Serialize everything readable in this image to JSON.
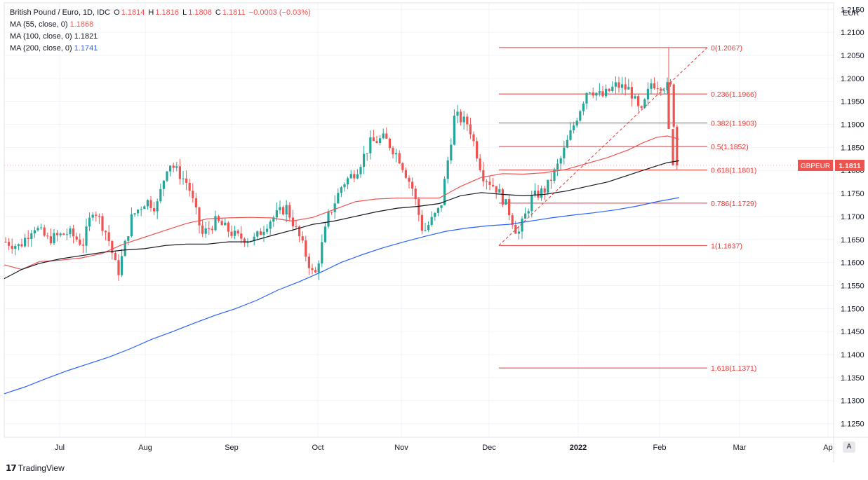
{
  "legend": {
    "title": "British Pound / Euro, 1D, IDC",
    "open_label": "O",
    "open": "1.1814",
    "high_label": "H",
    "high": "1.1816",
    "low_label": "L",
    "low": "1.1808",
    "close_label": "C",
    "close": "1.1811",
    "change": "−0.0003 (−0.03%)",
    "ma55_label": "MA (55, close, 0)",
    "ma55_value": "1.1868",
    "ma100_label": "MA (100, close, 0)",
    "ma100_value": "1.1821",
    "ma200_label": "MA (200, close, 0)",
    "ma200_value": "1.1741"
  },
  "currency": "EUR",
  "brand": "TradingView",
  "auto_label": "A",
  "chart_data": {
    "type": "candlestick",
    "symbol": "GBPEUR",
    "last_price": "1.1811",
    "ylim": [
      1.1225,
      1.2155
    ],
    "y_ticks": [
      "1.2150",
      "1.2100",
      "1.2050",
      "1.2000",
      "1.1950",
      "1.1900",
      "1.1850",
      "1.1800",
      "1.1750",
      "1.1700",
      "1.1650",
      "1.1600",
      "1.1550",
      "1.1500",
      "1.1450",
      "1.1400",
      "1.1350",
      "1.1300",
      "1.1250"
    ],
    "x_labels": [
      "Jul",
      "Aug",
      "Sep",
      "Oct",
      "Nov",
      "Dec",
      "2022",
      "Feb",
      "Mar",
      "Ap"
    ],
    "bull_color": "#26a69a",
    "bear_color": "#ef5350",
    "fib_color": "#e53935",
    "fibonacci": [
      {
        "label": "0(1.2067)",
        "value": 1.2067
      },
      {
        "label": "0.236(1.1966)",
        "value": 1.1966
      },
      {
        "label": "0.382(1.1903)",
        "value": 1.1903
      },
      {
        "label": "0.5(1.1852)",
        "value": 1.1852
      },
      {
        "label": "0.618(1.1801)",
        "value": 1.1801
      },
      {
        "label": "0.786(1.1729)",
        "value": 1.1729
      },
      {
        "label": "1(1.1637)",
        "value": 1.1637
      },
      {
        "label": "1.618(1.1371)",
        "value": 1.1371
      }
    ],
    "fib_trend_line": {
      "start_value": 1.1637,
      "end_value": 1.2067
    },
    "series": [
      {
        "name": "MA (55, close, 0)",
        "color": "#ef5350",
        "points": [
          [
            0,
            1.1595
          ],
          [
            25,
            1.1585
          ],
          [
            50,
            1.1602
          ],
          [
            80,
            1.1605
          ],
          [
            110,
            1.161
          ],
          [
            140,
            1.162
          ],
          [
            170,
            1.164
          ],
          [
            200,
            1.1655
          ],
          [
            230,
            1.167
          ],
          [
            260,
            1.1685
          ],
          [
            290,
            1.1695
          ],
          [
            320,
            1.1697
          ],
          [
            350,
            1.1698
          ],
          [
            380,
            1.1697
          ],
          [
            410,
            1.169
          ],
          [
            440,
            1.1698
          ],
          [
            470,
            1.1715
          ],
          [
            500,
            1.1732
          ],
          [
            530,
            1.1738
          ],
          [
            560,
            1.174
          ],
          [
            590,
            1.174
          ],
          [
            620,
            1.174
          ],
          [
            650,
            1.1765
          ],
          [
            680,
            1.1785
          ],
          [
            710,
            1.1793
          ],
          [
            740,
            1.1792
          ],
          [
            770,
            1.1795
          ],
          [
            800,
            1.1802
          ],
          [
            830,
            1.1815
          ],
          [
            860,
            1.1828
          ],
          [
            890,
            1.1845
          ],
          [
            910,
            1.186
          ],
          [
            930,
            1.1872
          ],
          [
            945,
            1.1875
          ],
          [
            962,
            1.1868
          ]
        ]
      },
      {
        "name": "MA (100, close, 0)",
        "color": "#131722",
        "points": [
          [
            0,
            1.1565
          ],
          [
            25,
            1.1585
          ],
          [
            50,
            1.1598
          ],
          [
            80,
            1.1608
          ],
          [
            110,
            1.1615
          ],
          [
            140,
            1.1622
          ],
          [
            170,
            1.1627
          ],
          [
            200,
            1.163
          ],
          [
            230,
            1.1637
          ],
          [
            260,
            1.164
          ],
          [
            290,
            1.164
          ],
          [
            320,
            1.1645
          ],
          [
            350,
            1.1645
          ],
          [
            380,
            1.1658
          ],
          [
            410,
            1.167
          ],
          [
            440,
            1.1683
          ],
          [
            470,
            1.169
          ],
          [
            500,
            1.17
          ],
          [
            530,
            1.171
          ],
          [
            560,
            1.1718
          ],
          [
            590,
            1.1722
          ],
          [
            620,
            1.1728
          ],
          [
            650,
            1.1745
          ],
          [
            680,
            1.1752
          ],
          [
            710,
            1.1748
          ],
          [
            740,
            1.1745
          ],
          [
            770,
            1.1748
          ],
          [
            800,
            1.1755
          ],
          [
            830,
            1.1765
          ],
          [
            860,
            1.1775
          ],
          [
            890,
            1.179
          ],
          [
            910,
            1.18
          ],
          [
            930,
            1.181
          ],
          [
            945,
            1.1817
          ],
          [
            962,
            1.1821
          ]
        ]
      },
      {
        "name": "MA (200, close, 0)",
        "color": "#2962ff",
        "points": [
          [
            0,
            1.1315
          ],
          [
            30,
            1.133
          ],
          [
            60,
            1.1348
          ],
          [
            90,
            1.1365
          ],
          [
            120,
            1.138
          ],
          [
            150,
            1.1395
          ],
          [
            180,
            1.1413
          ],
          [
            210,
            1.1433
          ],
          [
            240,
            1.145
          ],
          [
            270,
            1.1468
          ],
          [
            300,
            1.1485
          ],
          [
            330,
            1.15
          ],
          [
            360,
            1.1518
          ],
          [
            390,
            1.154
          ],
          [
            420,
            1.1558
          ],
          [
            450,
            1.1578
          ],
          [
            480,
            1.16
          ],
          [
            510,
            1.1617
          ],
          [
            540,
            1.1632
          ],
          [
            570,
            1.1645
          ],
          [
            600,
            1.1657
          ],
          [
            630,
            1.1668
          ],
          [
            660,
            1.1675
          ],
          [
            690,
            1.168
          ],
          [
            720,
            1.1683
          ],
          [
            750,
            1.169
          ],
          [
            780,
            1.1697
          ],
          [
            810,
            1.1703
          ],
          [
            840,
            1.1708
          ],
          [
            870,
            1.1714
          ],
          [
            900,
            1.1722
          ],
          [
            930,
            1.1732
          ],
          [
            962,
            1.1741
          ]
        ]
      }
    ]
  }
}
